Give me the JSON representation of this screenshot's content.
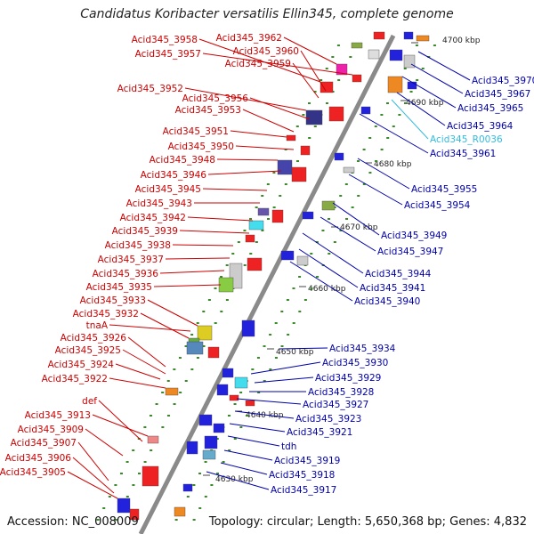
{
  "title": "Candidatus Koribacter versatilis Ellin345, complete genome",
  "footer": {
    "accession": "Accession: NC_008009",
    "topology": "Topology: circular; Length: 5,650,368 bp; Genes: 4,832"
  },
  "colors": {
    "left_labels": "#cc0000",
    "right_labels": "#0000aa",
    "rna_label": "#33bbdd",
    "backbone": "#888888"
  },
  "kbp_marks": [
    "4700 kbp",
    "4690 kbp",
    "4680 kbp",
    "4670 kbp",
    "4660 kbp",
    "4650 kbp",
    "4640 kbp",
    "4630 kbp"
  ],
  "left_genes": [
    "Acid345_3958",
    "Acid345_3962",
    "Acid345_3957",
    "Acid345_3960",
    "Acid345_3959",
    "Acid345_3952",
    "Acid345_3956",
    "Acid345_3953",
    "Acid345_3951",
    "Acid345_3950",
    "Acid345_3948",
    "Acid345_3946",
    "Acid345_3945",
    "Acid345_3943",
    "Acid345_3942",
    "Acid345_3939",
    "Acid345_3938",
    "Acid345_3937",
    "Acid345_3936",
    "Acid345_3935",
    "Acid345_3933",
    "Acid345_3932",
    "tnaA",
    "Acid345_3926",
    "Acid345_3925",
    "Acid345_3924",
    "Acid345_3922",
    "def",
    "Acid345_3913",
    "Acid345_3909",
    "Acid345_3907",
    "Acid345_3906",
    "Acid345_3905"
  ],
  "right_genes": [
    "Acid345_3970",
    "Acid345_3967",
    "Acid345_3965",
    "Acid345_3964",
    "Acid345_R0036",
    "Acid345_3961",
    "Acid345_3955",
    "Acid345_3954",
    "Acid345_3949",
    "Acid345_3947",
    "Acid345_3944",
    "Acid345_3941",
    "Acid345_3940",
    "Acid345_3934",
    "Acid345_3930",
    "Acid345_3929",
    "Acid345_3928",
    "Acid345_3927",
    "Acid345_3923",
    "Acid345_3921",
    "tdh",
    "Acid345_3919",
    "Acid345_3918",
    "Acid345_3917"
  ]
}
